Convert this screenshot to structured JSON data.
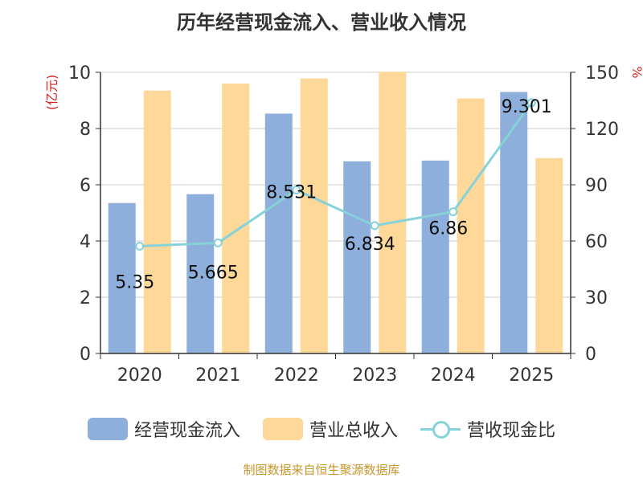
{
  "chart_data": {
    "type": "bar",
    "title": "历年经营现金流入、营业收入情况",
    "categories": [
      "2020",
      "2021",
      "2022",
      "2023",
      "2024",
      "2025"
    ],
    "ylabel_left": "(亿元)",
    "ylabel_right": "%",
    "ylim_left": [
      0,
      10
    ],
    "ylim_right": [
      0,
      150
    ],
    "yticks_left": [
      "0",
      "2",
      "4",
      "6",
      "8",
      "10"
    ],
    "yticks_right": [
      "0",
      "30",
      "60",
      "90",
      "120",
      "150"
    ],
    "grid": true,
    "legend_position": "bottom",
    "series": [
      {
        "name": "经营现金流入",
        "type": "bar",
        "axis": "left",
        "color": "#8eaedb",
        "values": [
          5.35,
          5.665,
          8.531,
          6.834,
          6.86,
          9.301
        ],
        "labels": [
          "5.35",
          "5.665",
          "8.531",
          "6.834",
          "6.86",
          "9.301"
        ]
      },
      {
        "name": "营业总收入",
        "type": "bar",
        "axis": "left",
        "color": "#fdd899",
        "values": [
          9.35,
          9.6,
          9.78,
          10.02,
          9.07,
          6.95
        ]
      },
      {
        "name": "营收现金比",
        "type": "line",
        "axis": "right",
        "color": "#86d2d9",
        "values": [
          57.2,
          59.0,
          87.2,
          68.2,
          75.6,
          133.8
        ]
      }
    ]
  },
  "source": "制图数据来自恒生聚源数据库"
}
